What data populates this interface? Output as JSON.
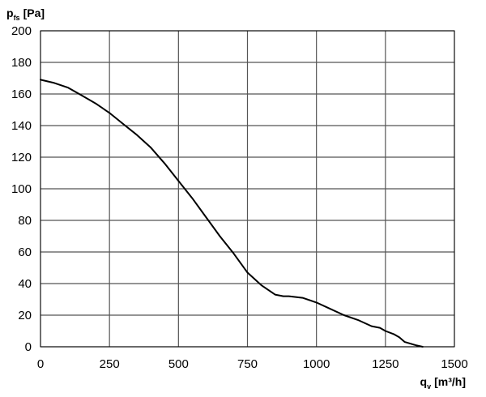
{
  "chart_data": {
    "type": "line",
    "title": "",
    "ylabel": {
      "main": "p",
      "sub": "fs",
      "unit": "[Pa]"
    },
    "xlabel": {
      "main": "q",
      "sub": "v",
      "unit": "[m³/h]"
    },
    "xlim": [
      0,
      1500
    ],
    "ylim": [
      0,
      200
    ],
    "x_ticks": [
      0,
      250,
      500,
      750,
      1000,
      1250,
      1500
    ],
    "y_ticks": [
      0,
      20,
      40,
      60,
      80,
      100,
      120,
      140,
      160,
      180,
      200
    ],
    "x_tick_labels": [
      "0",
      "250",
      "500",
      "750",
      "1000",
      "1250",
      "1500"
    ],
    "y_tick_labels": [
      "0",
      "20",
      "40",
      "60",
      "80",
      "100",
      "120",
      "140",
      "160",
      "180",
      "200"
    ],
    "grid": true,
    "line_color": "#000000",
    "grid_color": "#555555",
    "series": [
      {
        "x": [
          0,
          50,
          100,
          150,
          200,
          250,
          300,
          350,
          400,
          450,
          500,
          550,
          600,
          650,
          700,
          750,
          800,
          850,
          880,
          900,
          950,
          1000,
          1050,
          1100,
          1150,
          1200,
          1230,
          1250,
          1280,
          1300,
          1320,
          1340,
          1360,
          1385
        ],
        "y": [
          169,
          167,
          164,
          159,
          154,
          148,
          141,
          134,
          126,
          116,
          105,
          94,
          82,
          70,
          59,
          47,
          39,
          33,
          32,
          32,
          31,
          28,
          24,
          20,
          17,
          13,
          12,
          10,
          8,
          6,
          3,
          2,
          1,
          0
        ]
      }
    ]
  }
}
